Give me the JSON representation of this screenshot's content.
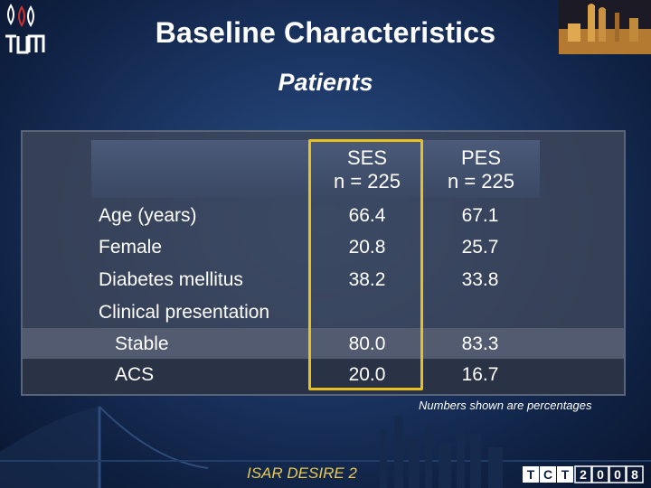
{
  "header": {
    "title": "Baseline Characteristics",
    "subtitle": "Patients",
    "logo_text": "TUM"
  },
  "table": {
    "columns": [
      {
        "name": "SES",
        "n": "n = 225"
      },
      {
        "name": "PES",
        "n": "n = 225"
      }
    ],
    "rows": [
      {
        "label": "Age (years)",
        "ses": "66.4",
        "pes": "67.1"
      },
      {
        "label": "Female",
        "ses": "20.8",
        "pes": "25.7"
      },
      {
        "label": "Diabetes mellitus",
        "ses": "38.2",
        "pes": "33.8"
      },
      {
        "label": "Clinical presentation",
        "ses": "",
        "pes": ""
      },
      {
        "label": "Stable",
        "ses": "80.0",
        "pes": "83.3"
      },
      {
        "label": "ACS",
        "ses": "20.0",
        "pes": "16.7"
      }
    ],
    "note": "Numbers shown are percentages"
  },
  "footer": {
    "trial": "ISAR DESIRE 2",
    "conference_logo": [
      "T",
      "C",
      "T",
      "2",
      "0",
      "0",
      "8"
    ]
  },
  "colors": {
    "highlight": "#e8c020",
    "footer_text": "#e8c850"
  }
}
